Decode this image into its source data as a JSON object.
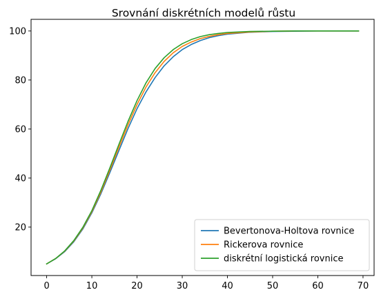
{
  "chart_data": {
    "type": "line",
    "title": "Srovnání diskrétních modelů růstu",
    "xlabel": "",
    "ylabel": "",
    "xlim": [
      -3.45,
      72.45
    ],
    "ylim": [
      0.25,
      104.75
    ],
    "x_ticks": [
      0,
      10,
      20,
      30,
      40,
      50,
      60,
      70
    ],
    "x_tick_labels": [
      "0",
      "10",
      "20",
      "30",
      "40",
      "50",
      "60",
      "70"
    ],
    "y_ticks": [
      20,
      40,
      60,
      80,
      100
    ],
    "y_tick_labels": [
      "20",
      "40",
      "60",
      "80",
      "100"
    ],
    "grid": false,
    "legend_position": "lower-right",
    "series": [
      {
        "name": "Bevertonova-Holtova rovnice",
        "color": "#1f77b4",
        "x": [
          0,
          2,
          4,
          6,
          8,
          10,
          12,
          14,
          16,
          18,
          20,
          22,
          24,
          26,
          28,
          30,
          32,
          34,
          36,
          38,
          40,
          45,
          50,
          55,
          60,
          65,
          69
        ],
        "y": [
          5.0,
          7.1,
          10.0,
          14.0,
          19.2,
          25.8,
          33.6,
          42.3,
          51.3,
          60.2,
          68.3,
          75.2,
          81.0,
          85.8,
          89.5,
          92.4,
          94.5,
          96.1,
          97.3,
          98.1,
          98.7,
          99.5,
          99.8,
          99.9,
          100.0,
          100.0,
          100.0
        ]
      },
      {
        "name": "Rickerova rovnice",
        "color": "#ff7f0e",
        "x": [
          0,
          2,
          4,
          6,
          8,
          10,
          12,
          14,
          16,
          18,
          20,
          22,
          24,
          26,
          28,
          30,
          32,
          34,
          36,
          38,
          40,
          45,
          50,
          55,
          60,
          65,
          69
        ],
        "y": [
          5.0,
          7.2,
          10.2,
          14.3,
          19.6,
          26.3,
          34.3,
          43.3,
          52.6,
          61.7,
          70.0,
          77.2,
          83.0,
          87.6,
          91.1,
          93.7,
          95.5,
          96.9,
          97.8,
          98.5,
          99.0,
          99.6,
          99.9,
          100.0,
          100.0,
          100.0,
          100.0
        ]
      },
      {
        "name": "diskrétní logistická rovnice",
        "color": "#2ca02c",
        "x": [
          0,
          2,
          4,
          6,
          8,
          10,
          12,
          14,
          16,
          18,
          20,
          22,
          24,
          26,
          28,
          30,
          32,
          34,
          36,
          38,
          40,
          45,
          50,
          55,
          60,
          65,
          69
        ],
        "y": [
          5.0,
          7.2,
          10.3,
          14.5,
          19.9,
          26.7,
          35.0,
          44.2,
          53.8,
          63.1,
          71.6,
          78.9,
          84.7,
          89.1,
          92.4,
          94.8,
          96.5,
          97.7,
          98.5,
          99.0,
          99.4,
          99.8,
          99.9,
          100.0,
          100.0,
          100.0,
          100.0
        ]
      }
    ]
  }
}
